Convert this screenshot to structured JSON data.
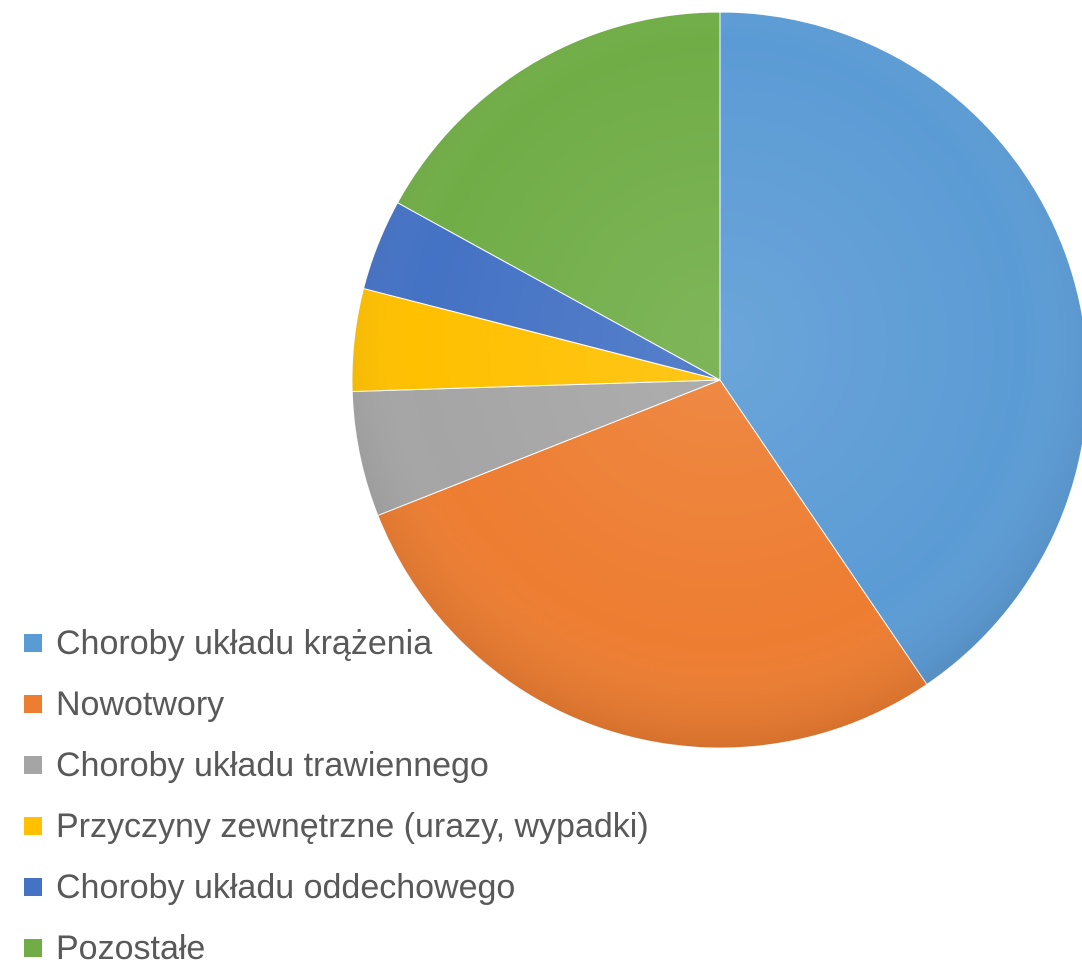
{
  "chart_data": {
    "type": "pie",
    "title": "",
    "categories": [
      "Choroby układu krążenia",
      "Nowotwory",
      "Choroby układu trawiennego",
      "Przyczyny zewnętrzne (urazy, wypadki)",
      "Choroby układu oddechowego",
      "Pozostałe"
    ],
    "values": [
      40.5,
      28.5,
      5.5,
      4.5,
      4.0,
      17.0
    ],
    "unit": "%",
    "colors": [
      "#5b9bd5",
      "#ed7d31",
      "#a5a5a5",
      "#ffc000",
      "#4472c4",
      "#70ad47"
    ],
    "start_angle_deg": 0,
    "direction": "clockwise",
    "legend_position": "bottom-left",
    "data_labels": false
  },
  "legend": {
    "items": [
      {
        "label": "Choroby układu krążenia",
        "color": "#5b9bd5"
      },
      {
        "label": "Nowotwory",
        "color": "#ed7d31"
      },
      {
        "label": "Choroby układu trawiennego",
        "color": "#a5a5a5"
      },
      {
        "label": "Przyczyny zewnętrzne (urazy, wypadki)",
        "color": "#ffc000"
      },
      {
        "label": "Choroby układu oddechowego",
        "color": "#4472c4"
      },
      {
        "label": "Pozostałe",
        "color": "#70ad47"
      }
    ]
  }
}
